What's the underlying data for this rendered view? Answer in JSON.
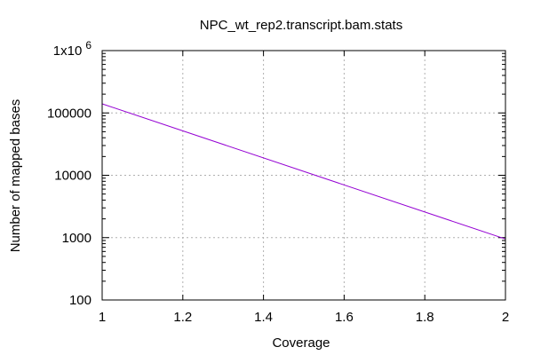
{
  "chart_data": {
    "type": "line",
    "title": "NPC_wt_rep2.transcript.bam.stats",
    "xlabel": "Coverage",
    "ylabel": "Number of mapped bases",
    "xlim": [
      1,
      2
    ],
    "ylim": [
      100,
      1000000
    ],
    "yscale": "log",
    "grid": true,
    "x_ticks": [
      "1",
      "1.2",
      "1.4",
      "1.6",
      "1.8",
      "2"
    ],
    "y_ticks": [
      {
        "value": 100,
        "label": "100"
      },
      {
        "value": 1000,
        "label": "1000"
      },
      {
        "value": 10000,
        "label": "10000"
      },
      {
        "value": 100000,
        "label": "100000"
      },
      {
        "value": 1000000,
        "label": "1x10",
        "superscript": "6"
      }
    ],
    "series": [
      {
        "color": "#9400d3",
        "x": [
          1,
          2
        ],
        "y": [
          140000,
          950
        ]
      }
    ]
  }
}
